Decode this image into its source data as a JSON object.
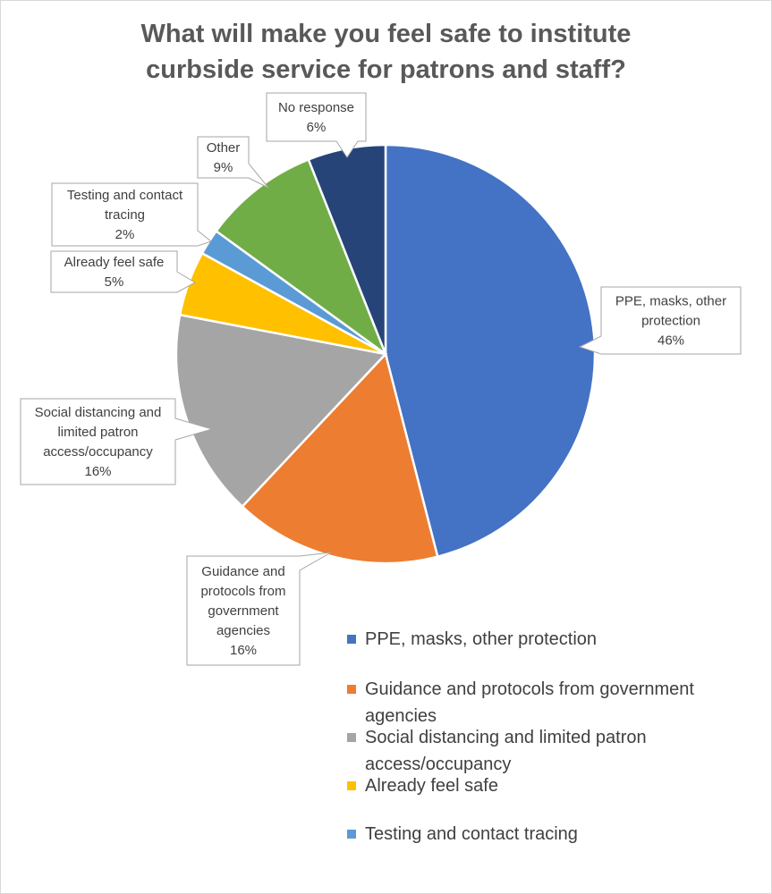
{
  "chart_data": {
    "type": "pie",
    "title_lines": [
      "What will make you feel safe to institute",
      "curbside service for patrons and staff?"
    ],
    "slices": [
      {
        "label": "PPE, masks, other protection",
        "value": 46,
        "value_label": "46%",
        "color": "#4472c4",
        "callout_lines": [
          "PPE, masks, other",
          "protection"
        ]
      },
      {
        "label": "Guidance and protocols from government agencies",
        "value": 16,
        "value_label": "16%",
        "color": "#ed7d31",
        "callout_lines": [
          "Guidance and",
          "protocols from",
          "government",
          "agencies"
        ]
      },
      {
        "label": "Social distancing and limited patron access/occupancy",
        "value": 16,
        "value_label": "16%",
        "color": "#a5a5a5",
        "callout_lines": [
          "Social distancing and",
          "limited patron",
          "access/occupancy"
        ]
      },
      {
        "label": "Already feel safe",
        "value": 5,
        "value_label": "5%",
        "color": "#ffc000",
        "callout_lines": [
          "Already feel safe"
        ]
      },
      {
        "label": "Testing and contact tracing",
        "value": 2,
        "value_label": "2%",
        "color": "#5b9bd5",
        "callout_lines": [
          "Testing and contact",
          "tracing"
        ]
      },
      {
        "label": "Other",
        "value": 9,
        "value_label": "9%",
        "color": "#70ad47",
        "callout_lines": [
          "Other"
        ]
      },
      {
        "label": "No response",
        "value": 6,
        "value_label": "6%",
        "color": "#264478",
        "callout_lines": [
          "No response"
        ]
      }
    ],
    "legend": [
      {
        "lines": [
          "PPE, masks, other protection"
        ],
        "color": "#4472c4"
      },
      {
        "lines": [
          "Guidance and protocols from government",
          "agencies"
        ],
        "color": "#ed7d31"
      },
      {
        "lines": [
          "Social distancing and limited patron",
          "access/occupancy"
        ],
        "color": "#a5a5a5"
      },
      {
        "lines": [
          "Already feel safe"
        ],
        "color": "#ffc000"
      },
      {
        "lines": [
          "Testing and contact tracing"
        ],
        "color": "#5b9bd5"
      }
    ]
  }
}
